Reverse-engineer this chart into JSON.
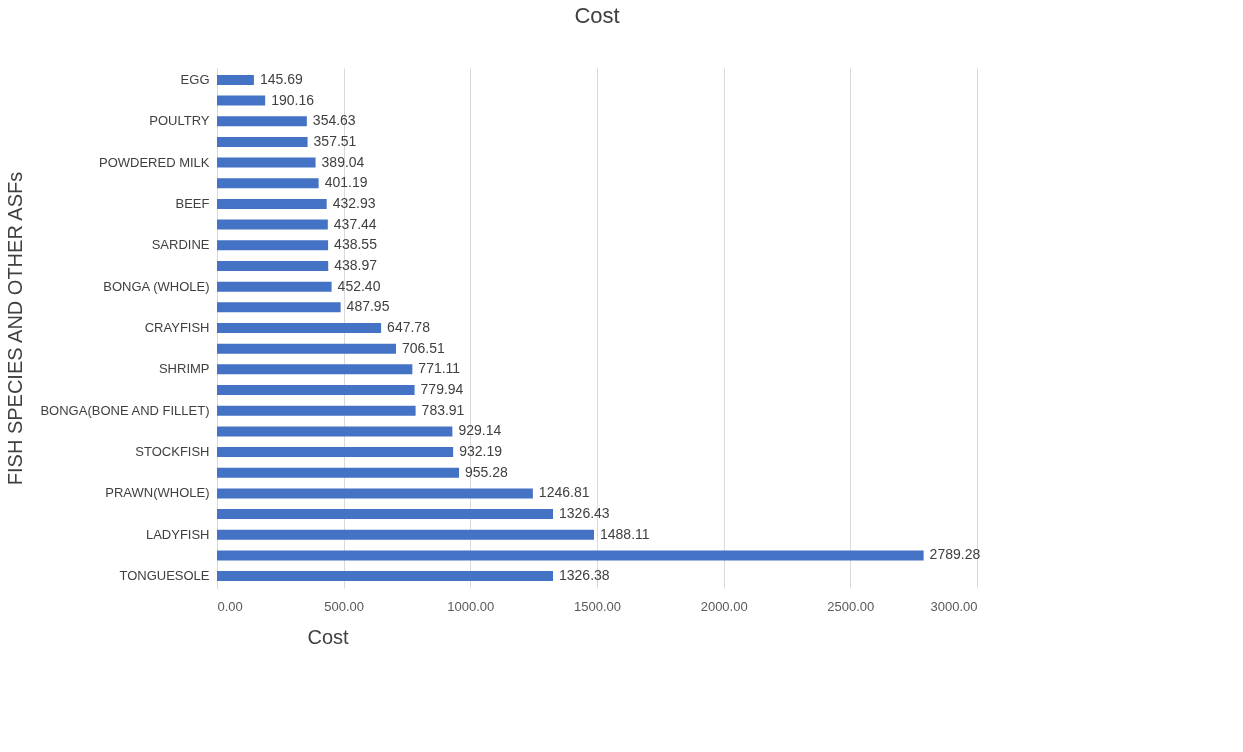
{
  "chart_data": {
    "type": "bar",
    "orientation": "horizontal",
    "title": "Cost",
    "xlabel": "Cost",
    "ylabel": "FISH SPECIES AND OTHER ASFs",
    "categories": [
      "EGG",
      null,
      "POULTRY",
      null,
      "POWDERED MILK",
      null,
      "BEEF",
      null,
      "SARDINE",
      null,
      "BONGA (WHOLE)",
      null,
      "CRAYFISH",
      null,
      "SHRIMP",
      null,
      "BONGA(BONE AND FILLET)",
      null,
      "STOCKFISH",
      null,
      "PRAWN(WHOLE)",
      null,
      "LADYFISH",
      null,
      "TONGUESOLE"
    ],
    "values": [
      145.69,
      190.16,
      354.63,
      357.51,
      389.04,
      401.19,
      432.93,
      437.44,
      438.55,
      438.97,
      452.4,
      487.95,
      647.78,
      706.51,
      771.11,
      779.94,
      783.91,
      929.14,
      932.19,
      955.28,
      1246.81,
      1326.43,
      1488.11,
      2789.28,
      1326.38
    ],
    "value_labels": [
      "145.69",
      "190.16",
      "354.63",
      "357.51",
      "389.04",
      "401.19",
      "432.93",
      "437.44",
      "438.55",
      "438.97",
      "452.40",
      "487.95",
      "647.78",
      "706.51",
      "771.11",
      "779.94",
      "783.91",
      "929.14",
      "932.19",
      "955.28",
      "1246.81",
      "1326.43",
      "1488.11",
      "2789.28",
      "1326.38"
    ],
    "color": "#4472c4",
    "xlim": [
      0,
      3000
    ],
    "xticks": [
      {
        "value": 0,
        "label": "0.00"
      },
      {
        "value": 500,
        "label": "500.00"
      },
      {
        "value": 1000,
        "label": "1000.00"
      },
      {
        "value": 1500,
        "label": "1500.00"
      },
      {
        "value": 2000,
        "label": "2000.00"
      },
      {
        "value": 2500,
        "label": "2500.00"
      },
      {
        "value": 3000,
        "label": "3000.00"
      }
    ],
    "grid": "x"
  }
}
